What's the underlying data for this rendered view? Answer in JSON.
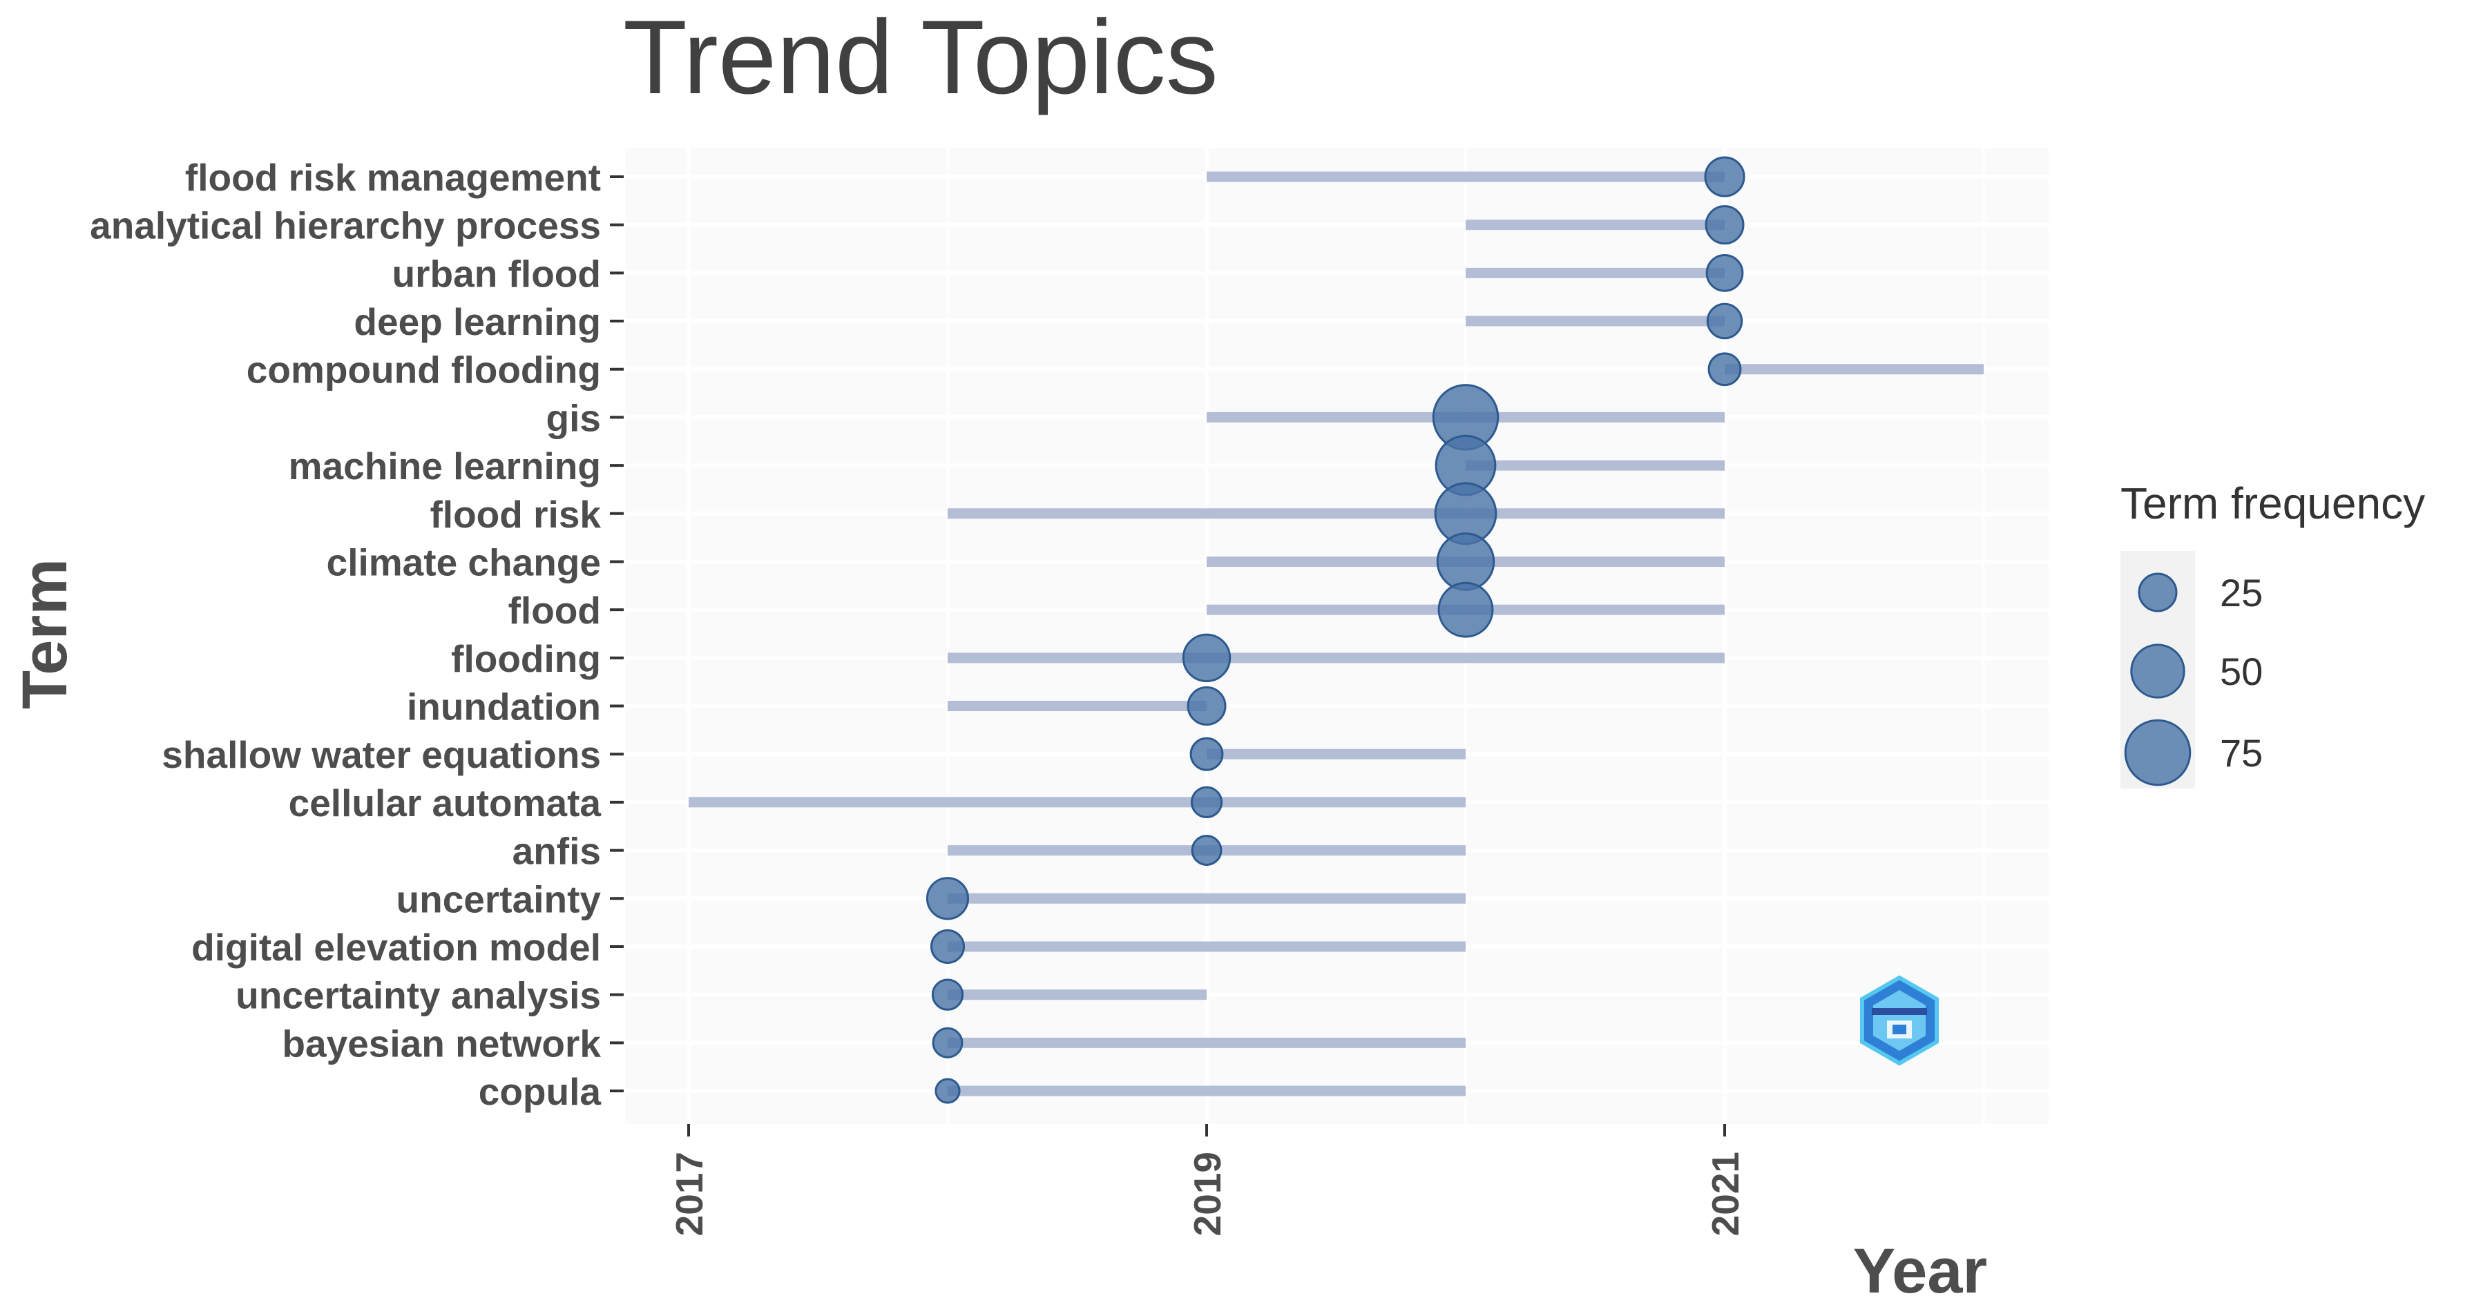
{
  "chart_data": {
    "type": "scatter",
    "title": "Trend Topics",
    "xlabel": "Year",
    "ylabel": "Term",
    "xlim": [
      2016.8,
      2022.25
    ],
    "x_ticks": [
      2017,
      2019,
      2021
    ],
    "grid": true,
    "legend_position": "right",
    "legend": {
      "title": "Term frequency",
      "sizes": [
        25,
        50,
        75
      ],
      "labels": [
        "25",
        "50",
        "75"
      ]
    },
    "colors": {
      "point_fill": "#4a73a6",
      "point_stroke": "#2d5a8e",
      "segment": "#b3bed6",
      "panel": "#fafafa",
      "grid": "#ffffff"
    },
    "terms": [
      {
        "term": "flood risk management",
        "q1": 2019,
        "median": 2021,
        "q3": 2021,
        "freq": 27
      },
      {
        "term": "analytical hierarchy process",
        "q1": 2020,
        "median": 2021,
        "q3": 2021,
        "freq": 25
      },
      {
        "term": "urban flood",
        "q1": 2020,
        "median": 2021,
        "q3": 2021,
        "freq": 23
      },
      {
        "term": "deep learning",
        "q1": 2020,
        "median": 2021,
        "q3": 2021,
        "freq": 21
      },
      {
        "term": "compound flooding",
        "q1": 2021,
        "median": 2021,
        "q3": 2022,
        "freq": 18
      },
      {
        "term": "gis",
        "q1": 2019,
        "median": 2020,
        "q3": 2021,
        "freq": 75
      },
      {
        "term": "machine learning",
        "q1": 2020,
        "median": 2020,
        "q3": 2021,
        "freq": 63
      },
      {
        "term": "flood risk",
        "q1": 2018,
        "median": 2020,
        "q3": 2021,
        "freq": 66
      },
      {
        "term": "climate change",
        "q1": 2019,
        "median": 2020,
        "q3": 2021,
        "freq": 57
      },
      {
        "term": "flood",
        "q1": 2019,
        "median": 2020,
        "q3": 2021,
        "freq": 52
      },
      {
        "term": "flooding",
        "q1": 2018,
        "median": 2019,
        "q3": 2021,
        "freq": 39
      },
      {
        "term": "inundation",
        "q1": 2018,
        "median": 2019,
        "q3": 2019,
        "freq": 25
      },
      {
        "term": "shallow water equations",
        "q1": 2019,
        "median": 2019,
        "q3": 2020,
        "freq": 18
      },
      {
        "term": "cellular automata",
        "q1": 2017,
        "median": 2019,
        "q3": 2020,
        "freq": 16
      },
      {
        "term": "anfis",
        "q1": 2018,
        "median": 2019,
        "q3": 2020,
        "freq": 15
      },
      {
        "term": "uncertainty",
        "q1": 2018,
        "median": 2018,
        "q3": 2020,
        "freq": 30
      },
      {
        "term": "digital elevation model",
        "q1": 2018,
        "median": 2018,
        "q3": 2020,
        "freq": 19
      },
      {
        "term": "uncertainty analysis",
        "q1": 2018,
        "median": 2018,
        "q3": 2019,
        "freq": 16
      },
      {
        "term": "bayesian network",
        "q1": 2018,
        "median": 2018,
        "q3": 2020,
        "freq": 15
      },
      {
        "term": "copula",
        "q1": 2018,
        "median": 2018,
        "q3": 2020,
        "freq": 10
      }
    ]
  }
}
